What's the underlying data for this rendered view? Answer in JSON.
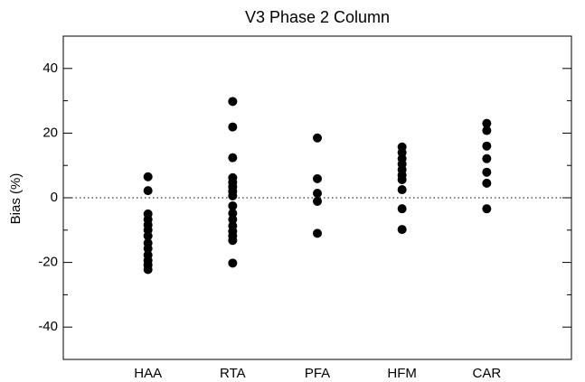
{
  "chart_data": {
    "type": "strip",
    "title": "V3 Phase 2 Column",
    "y_label": "Bias (%)",
    "categories": [
      "HAA",
      "RTA",
      "PFA",
      "HFM",
      "CAR"
    ],
    "values": [
      [
        6.5,
        2.2,
        -5,
        -6.7,
        -8.4,
        -10,
        -11.8,
        -14,
        -15.7,
        -17.7,
        -19.4,
        -20.8,
        -22.2
      ],
      [
        29.8,
        21.9,
        12.4,
        6.2,
        4.8,
        3.4,
        2,
        0.6,
        -2.5,
        -4.8,
        -6.7,
        -8.7,
        -10.4,
        -11.8,
        -13.2,
        -20.2
      ],
      [
        18.5,
        5.9,
        1.4,
        -1.1,
        -11
      ],
      [
        15.7,
        14,
        12.1,
        10.4,
        8.7,
        7,
        5.6,
        2.5,
        -3.4,
        -9.8
      ],
      [
        23,
        20.8,
        16,
        12.1,
        7.9,
        4.5,
        -3.4
      ]
    ],
    "color": "#000000",
    "ylim": [
      -50,
      50
    ],
    "yticks": [
      -40,
      -20,
      0,
      20,
      40
    ],
    "yminorticks": [
      -30,
      -10,
      10,
      30
    ],
    "zero_line": true
  }
}
